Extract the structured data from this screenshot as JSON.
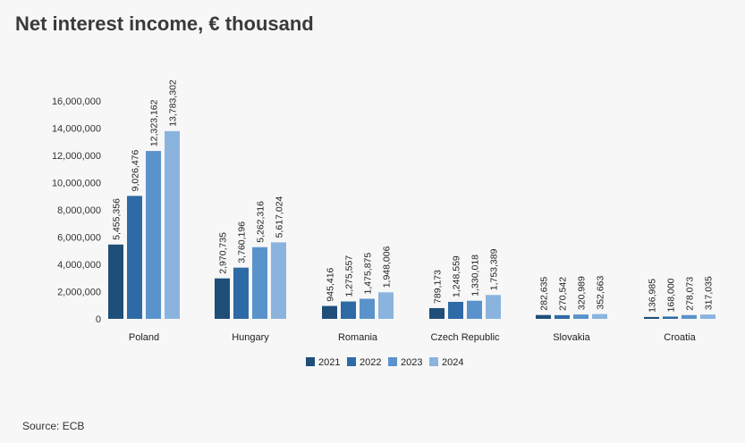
{
  "title": "Net interest income, € thousand",
  "source": "Source: ECB",
  "colors": [
    "#1f4e79",
    "#2e6aa6",
    "#5a93cc",
    "#8ab4de"
  ],
  "chart_data": {
    "type": "bar",
    "title": "Net interest income, € thousand",
    "categories": [
      "Poland",
      "Hungary",
      "Romania",
      "Czech Republic",
      "Slovakia",
      "Croatia"
    ],
    "series": [
      {
        "name": "2021",
        "values": [
          5455356,
          2970735,
          945416,
          789173,
          282635,
          136985
        ],
        "labels": [
          "5,455,356",
          "2,970,735",
          "945,416",
          "789,173",
          "282,635",
          "136,985"
        ]
      },
      {
        "name": "2022",
        "values": [
          9026476,
          3760196,
          1275557,
          1248559,
          270542,
          168000
        ],
        "labels": [
          "9,026,476",
          "3,760,196",
          "1,275,557",
          "1,248,559",
          "270,542",
          "168,000"
        ]
      },
      {
        "name": "2023",
        "values": [
          12323162,
          5262316,
          1475875,
          1330018,
          320989,
          278073
        ],
        "labels": [
          "12,323,162",
          "5,262,316",
          "1,475,875",
          "1,330,018",
          "320,989",
          "278,073"
        ]
      },
      {
        "name": "2024",
        "values": [
          13783302,
          5617024,
          1948006,
          1753389,
          352663,
          317035
        ],
        "labels": [
          "13,783,302",
          "5,617,024",
          "1,948,006",
          "1,753,389",
          "352,663",
          "317,035"
        ]
      }
    ],
    "yticks": [
      0,
      2000000,
      4000000,
      6000000,
      8000000,
      10000000,
      12000000,
      14000000,
      16000000
    ],
    "ytick_labels": [
      "0",
      "2,000,000",
      "4,000,000",
      "6,000,000",
      "8,000,000",
      "10,000,000",
      "12,000,000",
      "14,000,000",
      "16,000,000"
    ],
    "ylim": [
      0,
      16000000
    ],
    "grid": false,
    "legend": "bottom"
  }
}
